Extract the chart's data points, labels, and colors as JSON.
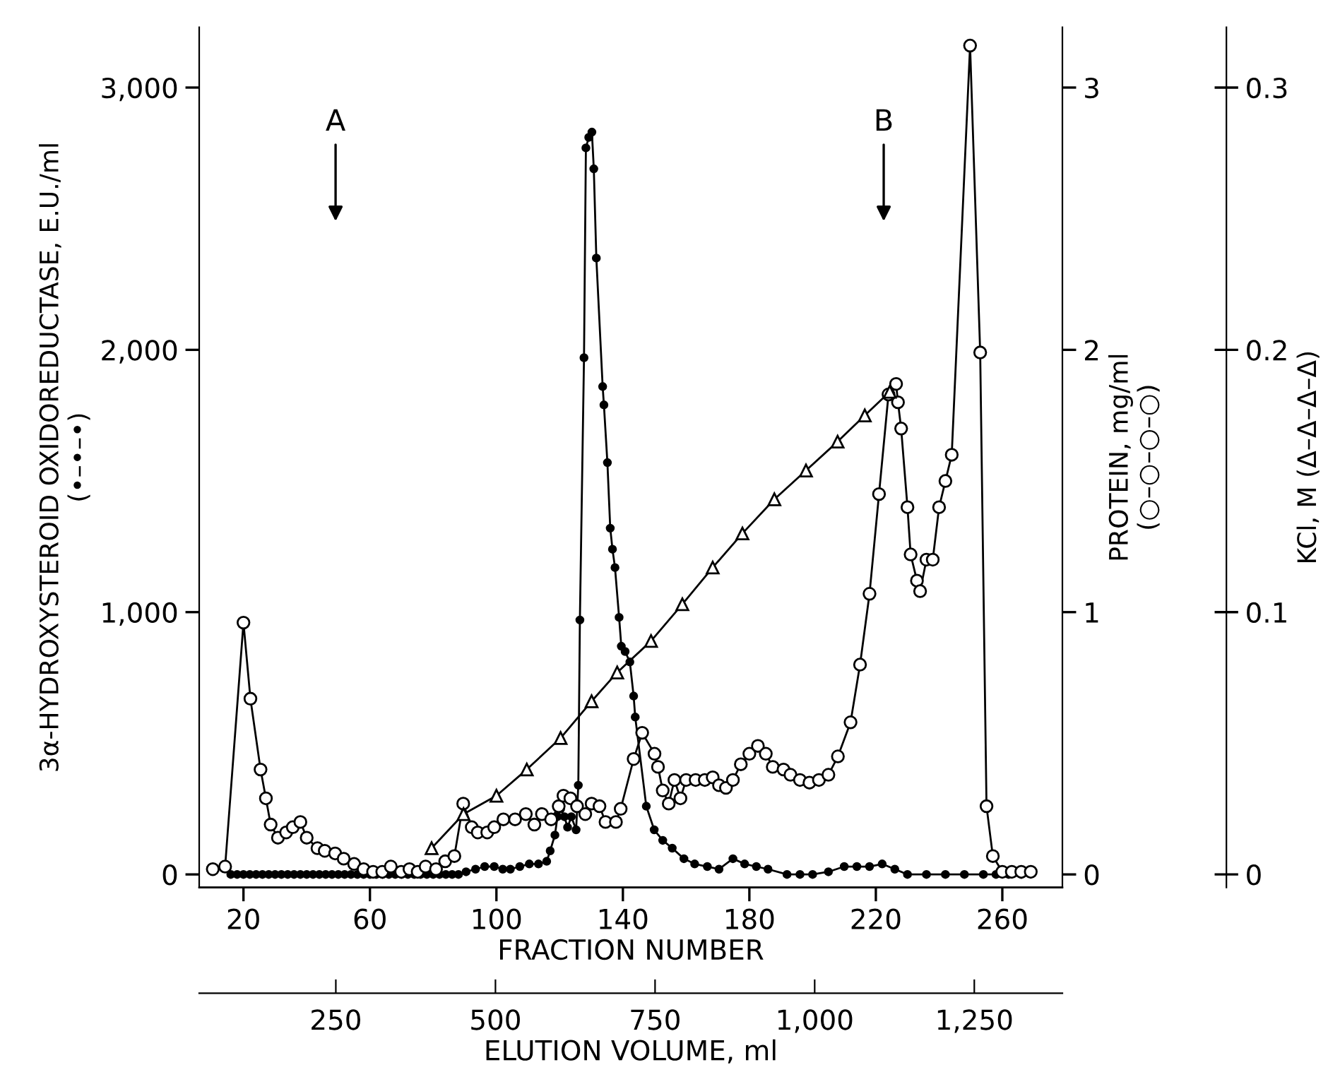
{
  "chart_data": {
    "type": "line",
    "xlabel": "FRACTION NUMBER",
    "ylabel": "3α-HYDROXYSTEROID OXIDOREDUCTASE, E.U./ml\n(•–•–•)",
    "y2label": "PROTEIN, mg/ml\n(○–○–○–○)",
    "y3label": "KCl, M (Δ–Δ–Δ–Δ)",
    "x2label": "ELUTION VOLUME, ml",
    "xlim": [
      6,
      279
    ],
    "xticks": [
      20,
      60,
      100,
      140,
      180,
      220,
      260
    ],
    "x2lim": [
      36,
      1388
    ],
    "x2ticks": [
      250,
      500,
      750,
      {
        "value": 1000,
        "label": "1,000"
      },
      {
        "value": 1250,
        "label": "1,250"
      }
    ],
    "ylim": [
      -50,
      3230
    ],
    "yticks": [
      0,
      {
        "value": 1000,
        "label": "1,000"
      },
      {
        "value": 2000,
        "label": "2,000"
      },
      {
        "value": 3000,
        "label": "3,000"
      }
    ],
    "y2lim": [
      -0.05,
      3.23
    ],
    "y2ticks": [
      0,
      1,
      2,
      3
    ],
    "y3lim": [
      -0.005,
      0.323
    ],
    "y3ticks": [
      0,
      0.1,
      0.2,
      0.3
    ],
    "grid": false,
    "legend": false,
    "line_style": "solid",
    "annotations": [
      "A",
      "B"
    ],
    "series": [
      {
        "color": "#000000",
        "marker": "circle",
        "axis": "y",
        "x": [
          16,
          18,
          20,
          22,
          24,
          26,
          28,
          30,
          32,
          34,
          36,
          38,
          40,
          42,
          44,
          46,
          48,
          50,
          52,
          54,
          56,
          58,
          60,
          62,
          64,
          66,
          68,
          70,
          72,
          74,
          76,
          78,
          80,
          82,
          84,
          86,
          88,
          90.4,
          93.4,
          96.3,
          99.3,
          102,
          104.4,
          107.4,
          110.4,
          113.3,
          115.9,
          117,
          118.5,
          119.3,
          120.3,
          121.5,
          122.5,
          123.7,
          125.2,
          125.9,
          126.4,
          127.7,
          128.3,
          129.2,
          130.2,
          130.8,
          131.6,
          133.6,
          134,
          135.1,
          136,
          136.7,
          137.5,
          138.8,
          139.5,
          140.7,
          142.2,
          143.4,
          143.9,
          147.4,
          149.9,
          152.6,
          155.6,
          159.3,
          162.7,
          166.7,
          170.4,
          174.8,
          178.5,
          182.2,
          185.9,
          191.9,
          196,
          200,
          205,
          210,
          214,
          218,
          222,
          226,
          230,
          236,
          242,
          248,
          254,
          258,
          262,
          266
        ],
        "values": [
          0,
          0,
          0,
          0,
          0,
          0,
          0,
          0,
          0,
          0,
          0,
          0,
          0,
          0,
          0,
          0,
          0,
          0,
          0,
          0,
          0,
          0,
          0,
          0,
          0,
          0,
          0,
          0,
          0,
          0,
          0,
          0,
          0,
          0,
          0,
          0,
          0,
          10,
          20,
          30,
          30,
          20,
          20,
          30,
          40,
          40,
          50,
          90,
          150,
          220,
          250,
          220,
          180,
          220,
          170,
          340,
          970,
          1970,
          2770,
          2810,
          2830,
          2690,
          2350,
          1860,
          1790,
          1570,
          1320,
          1240,
          1170,
          980,
          870,
          850,
          810,
          680,
          600,
          260,
          170,
          130,
          100,
          60,
          40,
          30,
          20,
          60,
          40,
          30,
          20,
          0,
          0,
          0,
          10,
          30,
          30,
          30,
          40,
          20,
          0,
          0,
          0,
          0,
          0,
          0,
          0,
          0
        ]
      },
      {
        "color": "#000000",
        "marker": "circle",
        "axis": "y2",
        "x": [
          10.3,
          14.2,
          20,
          22.2,
          25.4,
          27.1,
          28.6,
          30.9,
          33.5,
          35.6,
          38,
          40,
          43.4,
          45.7,
          49,
          51.7,
          55,
          58,
          61,
          63.9,
          66.6,
          69.9,
          72.5,
          75.1,
          77.6,
          80.9,
          83.8,
          86.7,
          89.5,
          92.2,
          94.1,
          97.1,
          99.3,
          102.2,
          105.9,
          109.3,
          112,
          114.4,
          117.3,
          119.7,
          121.2,
          123.4,
          125.5,
          128.1,
          130.1,
          132.6,
          134.5,
          137.8,
          139.3,
          143.4,
          146.1,
          150,
          151.1,
          152.6,
          154.5,
          156.3,
          158.2,
          160,
          163,
          165.9,
          168.4,
          170.4,
          172.6,
          174.8,
          177.3,
          180,
          182.7,
          185.2,
          187.4,
          190.8,
          193,
          196,
          199,
          202,
          205,
          208,
          212,
          215,
          218,
          221,
          224,
          226.4,
          227,
          228,
          230,
          231,
          233,
          234,
          236,
          238,
          240,
          242,
          244,
          249.8,
          253,
          255,
          257,
          260,
          263,
          266,
          269
        ],
        "values": [
          0.02,
          0.03,
          0.96,
          0.67,
          0.4,
          0.29,
          0.19,
          0.14,
          0.16,
          0.18,
          0.2,
          0.14,
          0.1,
          0.09,
          0.08,
          0.06,
          0.04,
          0.02,
          0.01,
          0.01,
          0.03,
          0.01,
          0.02,
          0.01,
          0.03,
          0.02,
          0.05,
          0.07,
          0.27,
          0.18,
          0.16,
          0.16,
          0.18,
          0.21,
          0.21,
          0.23,
          0.19,
          0.23,
          0.21,
          0.26,
          0.3,
          0.29,
          0.26,
          0.23,
          0.27,
          0.26,
          0.2,
          0.2,
          0.25,
          0.44,
          0.54,
          0.46,
          0.41,
          0.32,
          0.27,
          0.36,
          0.29,
          0.36,
          0.36,
          0.36,
          0.37,
          0.34,
          0.33,
          0.36,
          0.42,
          0.46,
          0.49,
          0.46,
          0.41,
          0.4,
          0.38,
          0.36,
          0.35,
          0.36,
          0.38,
          0.45,
          0.58,
          0.8,
          1.07,
          1.45,
          1.83,
          1.87,
          1.8,
          1.7,
          1.4,
          1.22,
          1.12,
          1.08,
          1.2,
          1.2,
          1.4,
          1.5,
          1.6,
          3.16,
          1.99,
          0.26,
          0.07,
          0.01,
          0.01,
          0.01,
          0.01
        ]
      },
      {
        "color": "#000000",
        "marker": "triangle",
        "axis": "y3",
        "x": [
          79.5,
          89.6,
          100,
          109.6,
          120.3,
          130.1,
          138.2,
          148.9,
          158.8,
          168.4,
          177.8,
          187.9,
          197.9,
          207.9,
          216.5,
          224.4
        ],
        "values": [
          0.01,
          0.023,
          0.03,
          0.04,
          0.052,
          0.066,
          0.077,
          0.089,
          0.103,
          0.117,
          0.13,
          0.143,
          0.154,
          0.165,
          0.175,
          0.184
        ]
      }
    ]
  }
}
